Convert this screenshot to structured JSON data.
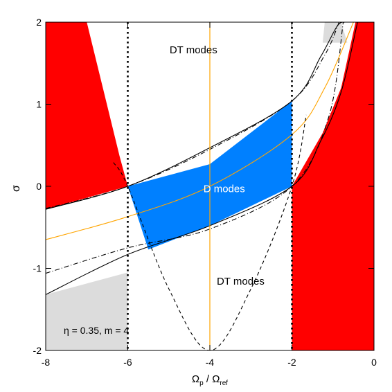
{
  "chart_data": {
    "type": "area",
    "xlim": [
      -8,
      0
    ],
    "ylim": [
      -2,
      2
    ],
    "xlabel": {
      "main": "Ω",
      "sub1": "p",
      "mid": " / Ω",
      "sub2": "ref"
    },
    "ylabel": "σ",
    "xticks": [
      -8,
      -6,
      -4,
      -2,
      0
    ],
    "yticks": [
      -2,
      -1,
      0,
      1,
      2
    ],
    "xtick_labels": [
      "-8",
      "-6",
      "-4",
      "-2",
      "0"
    ],
    "ytick_labels": [
      "-2",
      "-1",
      "0",
      "1",
      "2"
    ],
    "parameter_label": "η = 0.35, m = 4",
    "annotations": [
      {
        "text": "DT modes",
        "x": -4.4,
        "y": 1.62
      },
      {
        "text": "D modes",
        "x": -3.65,
        "y": -0.07
      },
      {
        "text": "DT modes",
        "x": -3.25,
        "y": -1.2
      }
    ],
    "vertical_dotted_lines": [
      -6,
      -2
    ],
    "vertical_orange_line": -4,
    "curves": {
      "solid_lower": {
        "style": "solid",
        "color": "#000000",
        "x": [
          -8,
          -6,
          -4,
          -2,
          -1.3,
          -0.8,
          -0.4
        ],
        "y": [
          -1.32,
          -0.83,
          -0.48,
          0.0,
          0.55,
          1.15,
          2.0
        ]
      },
      "solid_upper": {
        "style": "solid",
        "color": "#000000",
        "x": [
          -8,
          -6,
          -4,
          -2,
          -1.3,
          -0.9,
          -0.72
        ],
        "y": [
          -0.28,
          0.0,
          0.47,
          1.04,
          1.58,
          1.95,
          2.0
        ]
      },
      "dashdot_lower": {
        "style": "dashdot",
        "color": "#000000",
        "x": [
          -8,
          -6,
          -4,
          -2,
          -1.1,
          -0.75
        ],
        "y": [
          -1.06,
          -0.75,
          -0.52,
          0.0,
          0.85,
          2.0
        ]
      },
      "dashdot_upper": {
        "style": "dashdot",
        "color": "#000000",
        "x": [
          -8,
          -6,
          -4,
          -2,
          -1.2,
          -0.85
        ],
        "y": [
          -0.27,
          0.0,
          0.45,
          1.04,
          1.6,
          2.0
        ]
      },
      "orange": {
        "style": "solid",
        "color": "#ffa500",
        "x": [
          -8,
          -6,
          -4,
          -2,
          -1.2,
          -0.5
        ],
        "y": [
          -0.65,
          -0.37,
          0.0,
          0.63,
          1.2,
          2.0
        ]
      },
      "parabola": {
        "style": "dashed",
        "color": "#000000",
        "x": [
          -6.35,
          -6,
          -5,
          -4,
          -3,
          -2,
          -1.65
        ],
        "y": [
          0.29,
          0.0,
          -1.25,
          -2.0,
          -1.25,
          0.0,
          0.87
        ]
      }
    },
    "regions": [
      {
        "name": "D modes",
        "color": "#0080ff",
        "x": [
          -6,
          -4,
          -2,
          -2,
          -4,
          -5.5
        ],
        "y": [
          0.0,
          0.27,
          1.04,
          0.0,
          -0.48,
          -0.77
        ]
      },
      {
        "name": "red_left",
        "color": "#ff0000",
        "x": [
          -8,
          -7.0,
          -6.2,
          -6,
          -8
        ],
        "y": [
          2.0,
          2.0,
          0.37,
          0.0,
          -0.28
        ]
      },
      {
        "name": "red_right",
        "color": "#ff0000",
        "x": [
          -2,
          -1.25,
          -0.8,
          -0.45,
          0,
          0,
          -2
        ],
        "y": [
          0.0,
          0.65,
          1.2,
          2.0,
          2.0,
          -2.0,
          -2.0
        ]
      },
      {
        "name": "grey_lowerleft",
        "color": "#dcdcdc",
        "x": [
          -8,
          -6,
          -6,
          -8
        ],
        "y": [
          -1.32,
          -1.05,
          -2.0,
          -2.0
        ]
      },
      {
        "name": "grey_topright",
        "color": "#dcdcdc",
        "x": [
          -1.2,
          -0.8,
          -0.65,
          -1.25
        ],
        "y": [
          2.0,
          2.0,
          1.75,
          1.75
        ]
      }
    ]
  }
}
